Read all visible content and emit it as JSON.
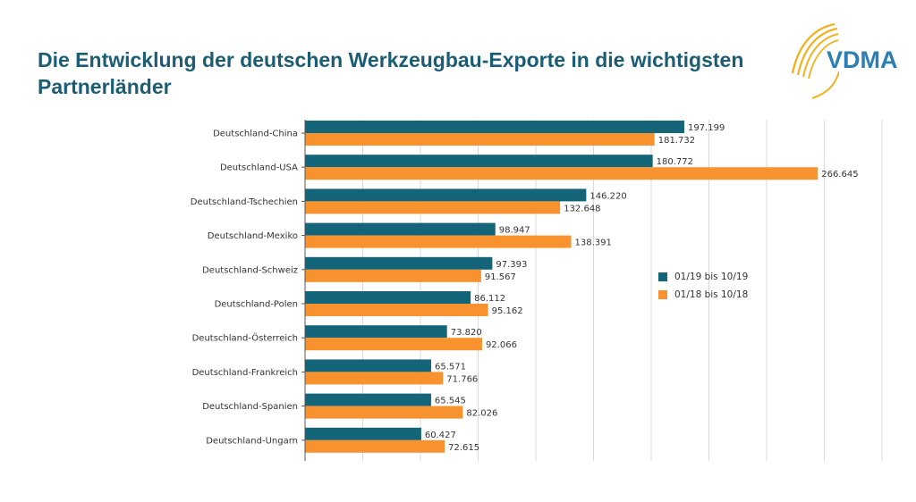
{
  "title": "Die Entwicklung der deutschen Werkzeugbau-Exporte in die wichtigsten Partnerländer",
  "logo": {
    "text": "VDMA",
    "text_color": "#2b7fb3",
    "swoosh_color": "#f0b323"
  },
  "colors": {
    "title": "#1b5d74",
    "series_1": "#14647a",
    "series_2": "#f7922e",
    "grid": "#d9d9d9",
    "axis": "#555555"
  },
  "chart_data": {
    "type": "bar",
    "orientation": "horizontal",
    "title": "",
    "xlabel": "",
    "ylabel": "",
    "xlim": [
      0,
      300000
    ],
    "grid": true,
    "legend_position": "right",
    "categories": [
      "Deutschland-China",
      "Deutschland-USA",
      "Deutschland-Tschechien",
      "Deutschland-Mexiko",
      "Deutschland-Schweiz",
      "Deutschland-Polen",
      "Deutschland-Österreich",
      "Deutschland-Frankreich",
      "Deutschland-Spanien",
      "Deutschland-Ungarn"
    ],
    "series": [
      {
        "name": "01/19 bis 10/19",
        "color": "#14647a",
        "values": [
          197199,
          180772,
          146220,
          98947,
          97393,
          86112,
          73820,
          65571,
          65545,
          60427
        ],
        "labels": [
          "197.199",
          "180.772",
          "146.220",
          "98.947",
          "97.393",
          "86.112",
          "73.820",
          "65.571",
          "65.545",
          "60.427"
        ]
      },
      {
        "name": "01/18 bis 10/18",
        "color": "#f7922e",
        "values": [
          181732,
          266645,
          132648,
          138391,
          91567,
          95162,
          92066,
          71766,
          82026,
          72615
        ],
        "labels": [
          "181.732",
          "266.645",
          "132.648",
          "138.391",
          "91.567",
          "95.162",
          "92.066",
          "71.766",
          "82.026",
          "72.615"
        ]
      }
    ]
  }
}
